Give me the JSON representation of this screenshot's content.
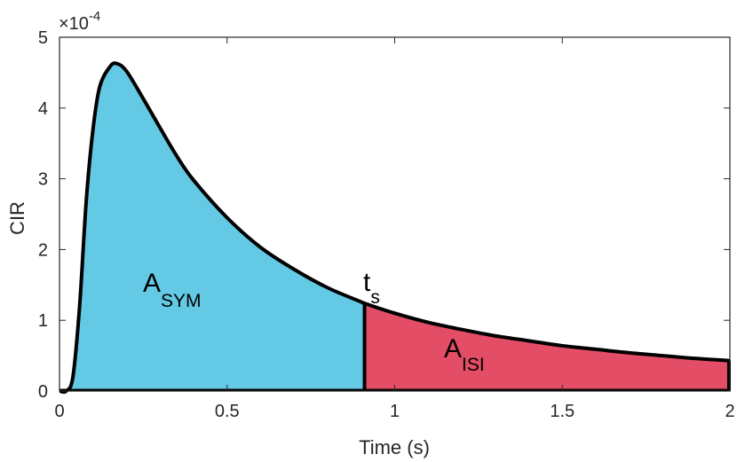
{
  "chart_data": {
    "type": "area",
    "xlabel": "Time (s)",
    "ylabel": "CIR",
    "xlim": [
      0,
      2
    ],
    "ylim": [
      0,
      0.0005
    ],
    "y_exponent_label": "×10",
    "y_exponent_value": "-4",
    "x_ticks": [
      "0",
      "0.5",
      "1",
      "1.5",
      "2"
    ],
    "x_tick_values": [
      0,
      0.5,
      1,
      1.5,
      2
    ],
    "y_ticks": [
      "0",
      "1",
      "2",
      "3",
      "4",
      "5"
    ],
    "y_tick_values": [
      0,
      0.0001,
      0.0002,
      0.0003,
      0.0004,
      0.0005
    ],
    "grid": false,
    "series": [
      {
        "x": [
          0,
          0.02,
          0.04,
          0.06,
          0.08,
          0.1,
          0.12,
          0.15,
          0.17,
          0.2,
          0.25,
          0.3,
          0.35,
          0.4,
          0.5,
          0.6,
          0.7,
          0.8,
          0.9,
          0.91,
          1.0,
          1.1,
          1.2,
          1.3,
          1.4,
          1.5,
          1.6,
          1.7,
          1.8,
          1.9,
          2.0
        ],
        "y": [
          0,
          0,
          2e-05,
          0.00012,
          0.00027,
          0.00037,
          0.00043,
          0.000458,
          0.000463,
          0.000452,
          0.000413,
          0.000372,
          0.000332,
          0.000298,
          0.000245,
          0.000203,
          0.000172,
          0.000146,
          0.000126,
          0.000124,
          0.00011,
          9.7e-05,
          8.7e-05,
          7.8e-05,
          7.1e-05,
          6.4e-05,
          5.9e-05,
          5.4e-05,
          5e-05,
          4.6e-05,
          4.3e-05
        ]
      }
    ],
    "split_x": 0.91,
    "regions": [
      {
        "label_main": "A",
        "label_sub": "SYM",
        "color": "#63C9E4",
        "x_from": 0,
        "x_to": 0.91
      },
      {
        "label_main": "A",
        "label_sub": "ISI",
        "color": "#E34D66",
        "x_from": 0.91,
        "x_to": 2
      }
    ],
    "split_label_main": "t",
    "split_label_sub": "s",
    "line_color": "#000000"
  }
}
